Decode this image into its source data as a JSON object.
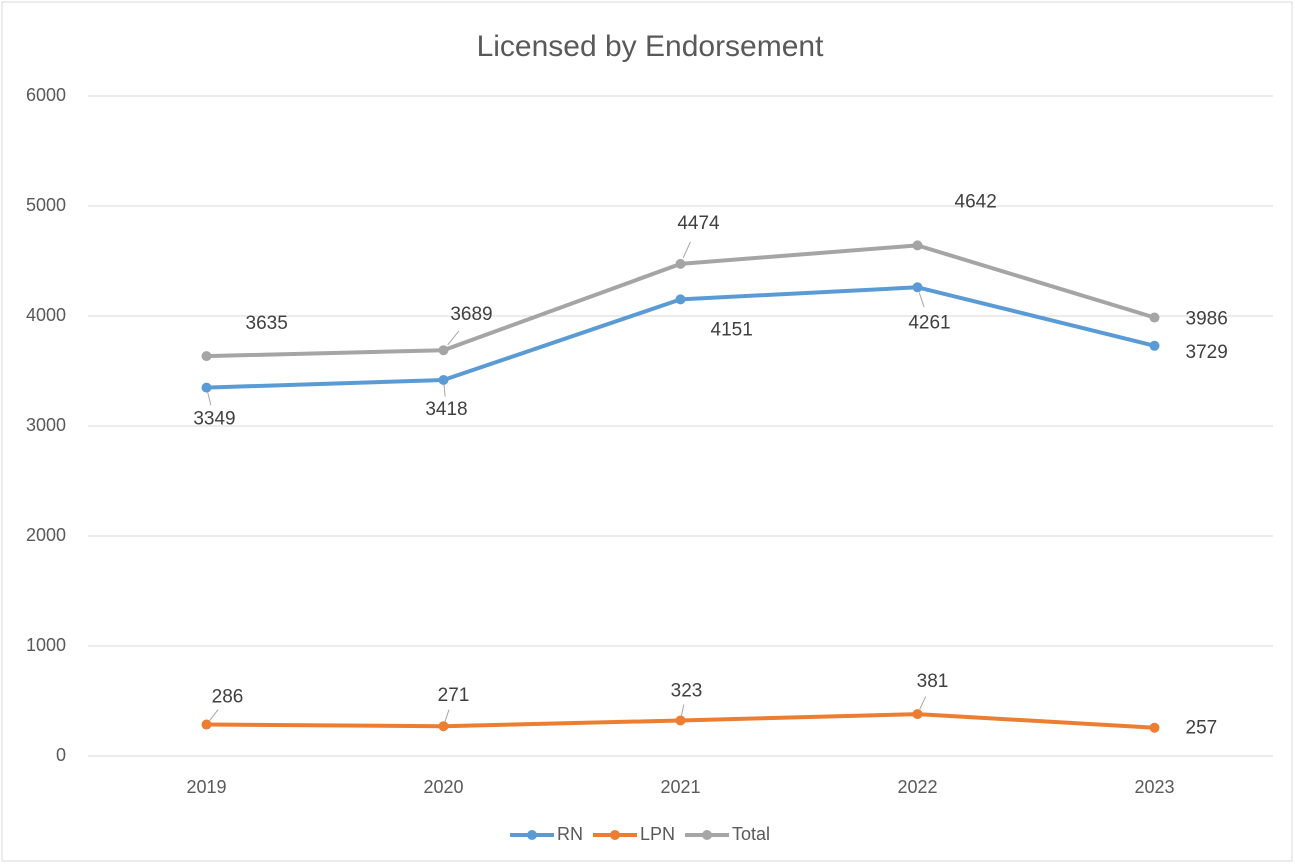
{
  "chart_data": {
    "type": "line",
    "title": "Licensed by Endorsement",
    "categories": [
      "2019",
      "2020",
      "2021",
      "2022",
      "2023"
    ],
    "series": [
      {
        "name": "RN",
        "color": "#5b9bd5",
        "values": [
          3349,
          3418,
          4151,
          4261,
          3729
        ]
      },
      {
        "name": "LPN",
        "color": "#ed7d31",
        "values": [
          286,
          271,
          323,
          381,
          257
        ]
      },
      {
        "name": "Total",
        "color": "#a5a5a5",
        "values": [
          3635,
          3689,
          4474,
          4642,
          3986
        ]
      }
    ],
    "ylim": [
      0,
      6000
    ],
    "yticks": [
      0,
      1000,
      2000,
      3000,
      4000,
      5000,
      6000
    ],
    "grid": true,
    "legend": "bottom"
  }
}
